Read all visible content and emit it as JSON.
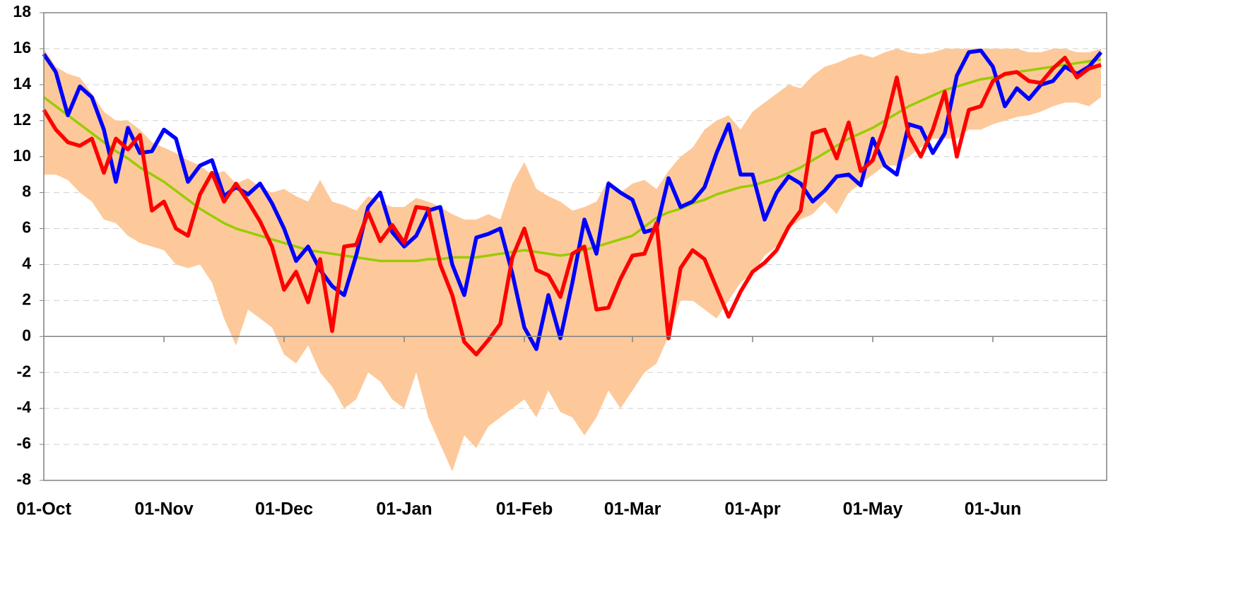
{
  "chart_data": {
    "type": "line",
    "categories": [
      "01-Oct",
      null,
      null,
      null,
      null,
      null,
      null,
      null,
      null,
      null,
      "01-Nov",
      null,
      null,
      null,
      null,
      null,
      null,
      null,
      null,
      null,
      "01-Dec",
      null,
      null,
      null,
      null,
      null,
      null,
      null,
      null,
      null,
      "01-Jan",
      null,
      null,
      null,
      null,
      null,
      null,
      null,
      null,
      null,
      "01-Feb",
      null,
      null,
      null,
      null,
      null,
      null,
      null,
      null,
      "01-Mar",
      null,
      null,
      null,
      null,
      null,
      null,
      null,
      null,
      null,
      "01-Apr",
      null,
      null,
      null,
      null,
      null,
      null,
      null,
      null,
      null,
      "01-May",
      null,
      null,
      null,
      null,
      null,
      null,
      null,
      null,
      null,
      "01-Jun",
      null,
      null,
      null,
      null,
      null,
      null,
      null,
      null,
      null
    ],
    "band": {
      "color": "#fdc99a",
      "upper": [
        16.0,
        15.0,
        14.6,
        14.4,
        13.5,
        12.5,
        12.0,
        12.0,
        11.5,
        10.8,
        10.5,
        10.2,
        9.8,
        9.5,
        9.0,
        9.2,
        8.5,
        8.8,
        8.3,
        8.0,
        8.2,
        7.8,
        7.5,
        8.7,
        7.5,
        7.3,
        7.0,
        7.8,
        7.5,
        7.2,
        7.2,
        7.7,
        7.5,
        7.2,
        6.8,
        6.5,
        6.5,
        6.8,
        6.5,
        8.5,
        9.7,
        8.2,
        7.8,
        7.5,
        7.0,
        7.2,
        7.5,
        8.7,
        8.0,
        8.5,
        8.7,
        8.2,
        9.2,
        10.0,
        10.5,
        11.5,
        12.0,
        12.3,
        11.5,
        12.5,
        13.0,
        13.5,
        14.0,
        13.8,
        14.5,
        15.0,
        15.2,
        15.5,
        15.7,
        15.5,
        15.8,
        16.0,
        15.8,
        15.7,
        15.8,
        16.0,
        16.0,
        16.0,
        16.0,
        16.0,
        16.0,
        16.0,
        15.8,
        15.8,
        16.0,
        16.0,
        15.8,
        15.8,
        16.0
      ],
      "lower": [
        9.0,
        9.0,
        8.7,
        8.0,
        7.5,
        6.5,
        6.3,
        5.6,
        5.2,
        5.0,
        4.8,
        4.0,
        3.8,
        4.0,
        3.0,
        1.0,
        -0.5,
        1.5,
        1.0,
        0.5,
        -1.0,
        -1.5,
        -0.5,
        -2.0,
        -2.8,
        -4.0,
        -3.5,
        -2.0,
        -2.5,
        -3.5,
        -4.0,
        -2.0,
        -4.5,
        -6.0,
        -7.5,
        -5.5,
        -6.2,
        -5.0,
        -4.5,
        -4.0,
        -3.5,
        -4.5,
        -3.0,
        -4.2,
        -4.5,
        -5.5,
        -4.5,
        -3.0,
        -4.0,
        -3.0,
        -2.0,
        -1.5,
        0.0,
        2.0,
        2.0,
        1.5,
        1.0,
        2.0,
        3.0,
        3.5,
        4.5,
        5.0,
        6.0,
        6.5,
        6.8,
        7.5,
        6.8,
        8.0,
        8.5,
        9.0,
        9.5,
        9.5,
        10.0,
        10.5,
        11.0,
        11.0,
        11.0,
        11.5,
        11.5,
        11.8,
        12.0,
        12.2,
        12.3,
        12.5,
        12.8,
        13.0,
        13.0,
        12.8,
        13.3
      ]
    },
    "series": [
      {
        "color": "#99cc00",
        "values": [
          13.3,
          12.8,
          12.3,
          11.8,
          11.3,
          10.8,
          10.3,
          9.9,
          9.4,
          9.0,
          8.6,
          8.1,
          7.6,
          7.1,
          6.7,
          6.3,
          6.0,
          5.8,
          5.6,
          5.4,
          5.2,
          5.0,
          4.8,
          4.7,
          4.6,
          4.5,
          4.4,
          4.3,
          4.2,
          4.2,
          4.2,
          4.2,
          4.3,
          4.3,
          4.4,
          4.4,
          4.4,
          4.5,
          4.6,
          4.7,
          4.8,
          4.7,
          4.6,
          4.5,
          4.6,
          4.8,
          5.0,
          5.2,
          5.4,
          5.6,
          6.1,
          6.6,
          6.9,
          7.1,
          7.4,
          7.6,
          7.9,
          8.1,
          8.3,
          8.4,
          8.6,
          8.8,
          9.1,
          9.4,
          9.8,
          10.2,
          10.6,
          11.0,
          11.3,
          11.6,
          12.0,
          12.4,
          12.8,
          13.1,
          13.4,
          13.7,
          13.9,
          14.1,
          14.3,
          14.4,
          14.5,
          14.7,
          14.8,
          14.9,
          15.0,
          15.1,
          15.2,
          15.3,
          15.4
        ]
      },
      {
        "color": "#0000ff",
        "values": [
          15.7,
          14.7,
          12.3,
          13.9,
          13.3,
          11.5,
          8.6,
          11.6,
          10.2,
          10.3,
          11.5,
          11.0,
          8.6,
          9.5,
          9.8,
          7.8,
          8.3,
          7.9,
          8.5,
          7.4,
          6.0,
          4.2,
          5.0,
          3.7,
          2.8,
          2.3,
          4.5,
          7.2,
          8.0,
          5.8,
          5.0,
          5.6,
          7.0,
          7.2,
          4.0,
          2.3,
          5.5,
          5.7,
          6.0,
          3.5,
          0.5,
          -0.7,
          2.3,
          -0.1,
          3.0,
          6.5,
          4.6,
          8.5,
          8.0,
          7.6,
          5.8,
          6.0,
          8.8,
          7.2,
          7.5,
          8.3,
          10.2,
          11.8,
          9.0,
          9.0,
          6.5,
          8.0,
          8.9,
          8.5,
          7.5,
          8.1,
          8.9,
          9.0,
          8.4,
          11.0,
          9.5,
          9.0,
          11.8,
          11.6,
          10.2,
          11.3,
          14.5,
          15.8,
          15.9,
          15.0,
          12.8,
          13.8,
          13.2,
          14.0,
          14.2,
          15.0,
          14.6,
          15.0,
          15.8
        ]
      },
      {
        "color": "#ff0000",
        "values": [
          12.6,
          11.5,
          10.8,
          10.6,
          11.0,
          9.1,
          11.0,
          10.4,
          11.2,
          7.0,
          7.5,
          6.0,
          5.6,
          7.9,
          9.1,
          7.5,
          8.5,
          7.5,
          6.4,
          5.0,
          2.6,
          3.6,
          1.9,
          4.3,
          0.3,
          5.0,
          5.1,
          6.9,
          5.3,
          6.2,
          5.2,
          7.2,
          7.1,
          4.0,
          2.3,
          -0.3,
          -1.0,
          -0.2,
          0.7,
          4.4,
          6.0,
          3.7,
          3.4,
          2.2,
          4.6,
          5.0,
          1.5,
          1.6,
          3.2,
          4.5,
          4.6,
          6.3,
          -0.1,
          3.8,
          4.8,
          4.3,
          2.7,
          1.1,
          2.5,
          3.6,
          4.1,
          4.8,
          6.1,
          7.0,
          11.3,
          11.5,
          9.9,
          11.9,
          9.2,
          9.8,
          11.7,
          14.4,
          11.2,
          10.0,
          11.5,
          13.6,
          10.0,
          12.6,
          12.8,
          14.2,
          14.6,
          14.7,
          14.2,
          14.1,
          14.9,
          15.5,
          14.4,
          14.9,
          15.1
        ]
      }
    ],
    "ylim": [
      -8,
      18
    ],
    "yticks": [
      -8,
      -6,
      -4,
      -2,
      0,
      2,
      4,
      6,
      8,
      10,
      12,
      14,
      16,
      18
    ],
    "grid": true
  }
}
